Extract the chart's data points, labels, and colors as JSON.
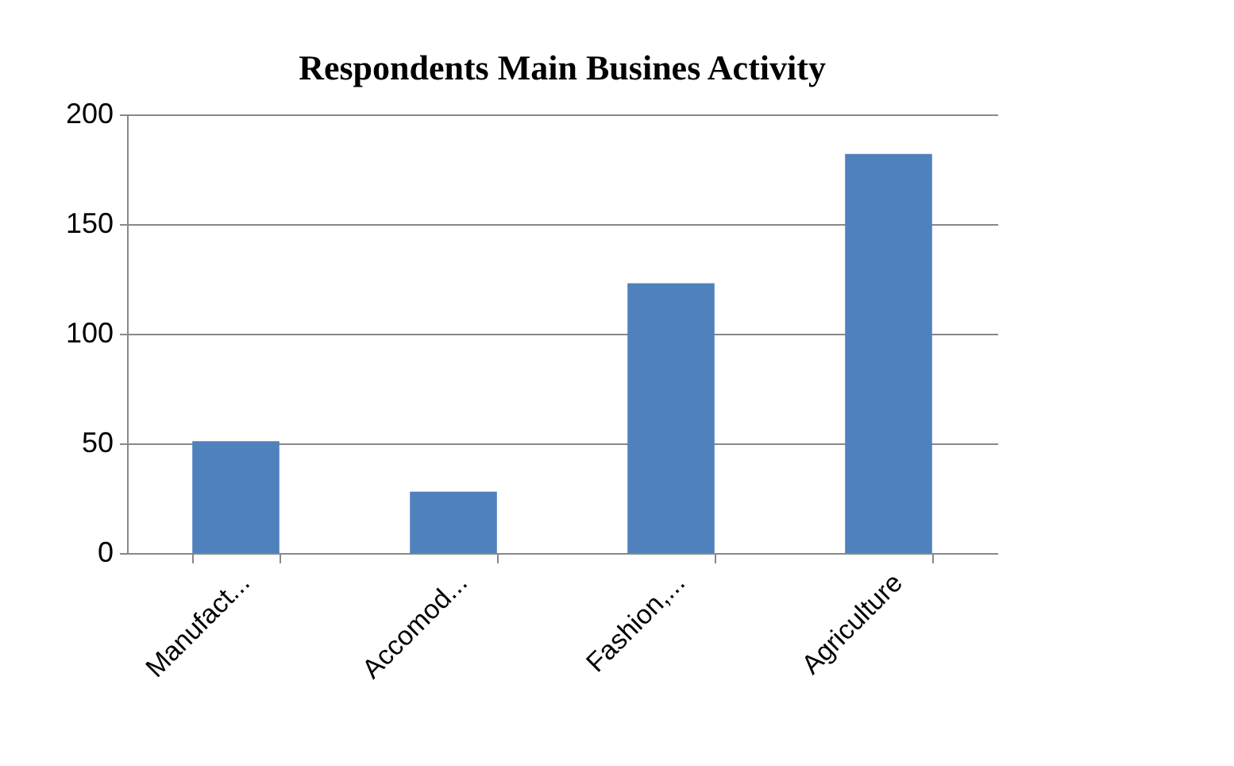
{
  "chart_data": {
    "type": "bar",
    "title": "Respondents Main Busines Activity",
    "categories": [
      "Manufact...",
      "Accomod...",
      "Fashion,...",
      "Agriculture"
    ],
    "values": [
      51,
      28,
      123,
      182
    ],
    "color": "#4f81bd",
    "ylim": [
      0,
      200
    ],
    "yticks": [
      0,
      50,
      100,
      150,
      200
    ],
    "grid": "y"
  }
}
